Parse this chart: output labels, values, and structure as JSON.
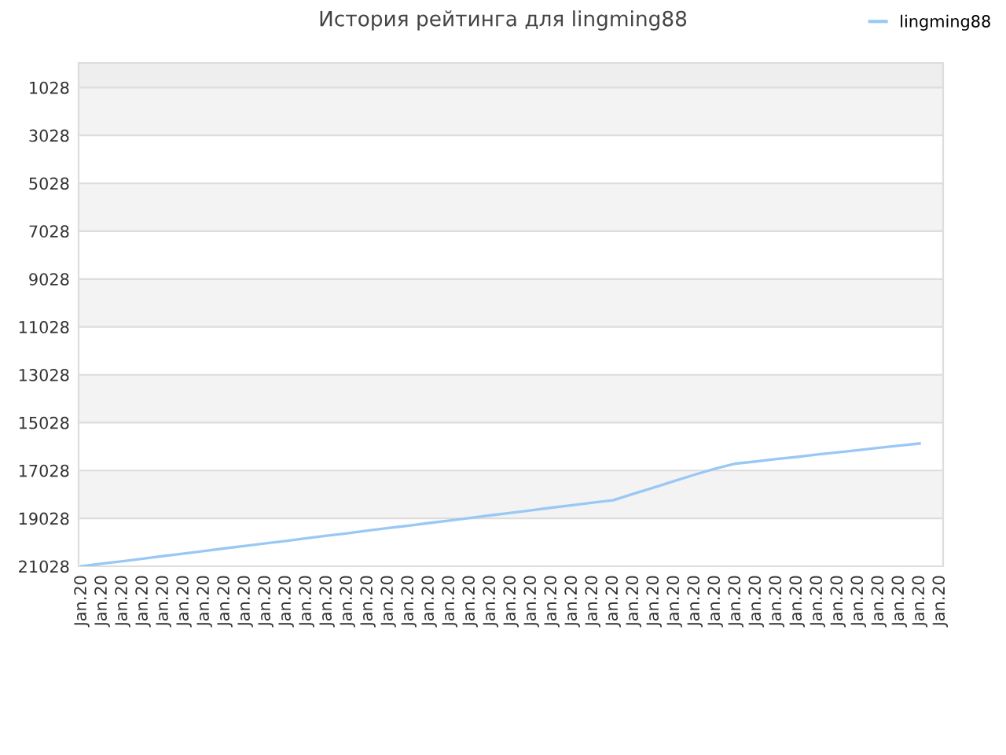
{
  "chart_data": {
    "type": "line",
    "title": "История рейтинга для lingming88",
    "categories": [
      "Jan.20",
      "Jan.20",
      "Jan.20",
      "Jan.20",
      "Jan.20",
      "Jan.20",
      "Jan.20",
      "Jan.20",
      "Jan.20",
      "Jan.20",
      "Jan.20",
      "Jan.20",
      "Jan.20",
      "Jan.20",
      "Jan.20",
      "Jan.20",
      "Jan.20",
      "Jan.20",
      "Jan.20",
      "Jan.20",
      "Jan.20",
      "Jan.20",
      "Jan.20",
      "Jan.20",
      "Jan.20",
      "Jan.20",
      "Jan.20",
      "Jan.20",
      "Jan.20",
      "Jan.20",
      "Jan.20",
      "Jan.20",
      "Jan.20",
      "Jan.20",
      "Jan.20",
      "Jan.20",
      "Jan.20",
      "Jan.20",
      "Jan.20",
      "Jan.20",
      "Jan.20",
      "Jan.20",
      "Jan.20"
    ],
    "series": [
      {
        "name": "lingming88",
        "color": "#99c8f5",
        "values": [
          21028,
          20920,
          20820,
          20710,
          20600,
          20500,
          20390,
          20280,
          20180,
          20070,
          19970,
          19860,
          19750,
          19650,
          19540,
          19430,
          19330,
          19220,
          19120,
          19010,
          18900,
          18800,
          18690,
          18580,
          18480,
          18370,
          18270,
          18000,
          17740,
          17470,
          17200,
          16950,
          16740,
          16650,
          16550,
          16460,
          16360,
          16270,
          16180,
          16080,
          15990,
          15900,
          null
        ]
      }
    ],
    "ylim": [
      21028,
      0
    ],
    "yticks": [
      1028,
      3028,
      5028,
      7028,
      9028,
      11028,
      13028,
      15028,
      17028,
      19028,
      21028
    ],
    "grid": "y",
    "legend": "top right",
    "marker": "none",
    "line_style": "solid",
    "bands": [
      {
        "axis": "y",
        "from": 0,
        "to": 1028,
        "color": "#eeeeee"
      },
      {
        "axis": "y",
        "from": 1028,
        "to": 3028,
        "color": "#f3f3f3"
      },
      {
        "axis": "y",
        "from": 5028,
        "to": 7028,
        "color": "#f3f3f3"
      },
      {
        "axis": "y",
        "from": 9028,
        "to": 11028,
        "color": "#f3f3f3"
      },
      {
        "axis": "y",
        "from": 13028,
        "to": 15028,
        "color": "#f3f3f3"
      },
      {
        "axis": "y",
        "from": 17028,
        "to": 19028,
        "color": "#f3f3f3"
      }
    ]
  }
}
